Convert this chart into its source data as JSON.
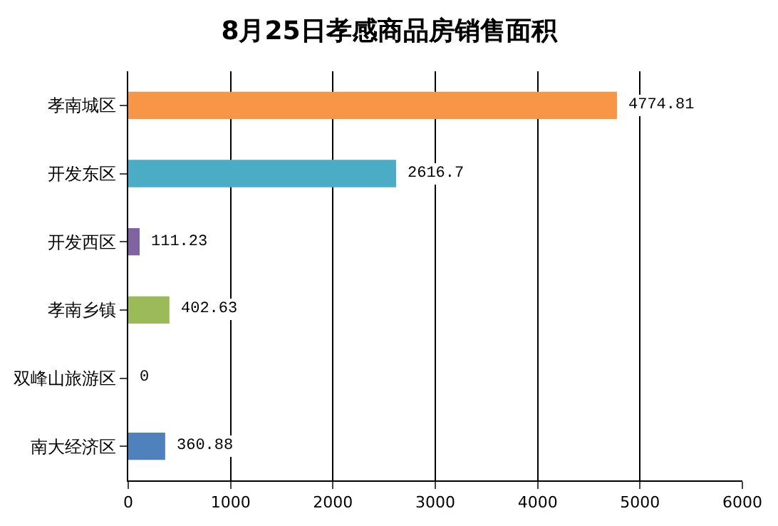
{
  "chart_data": {
    "type": "bar",
    "orientation": "horizontal",
    "title": "8月25日孝感商品房销售面积",
    "categories": [
      "孝南城区",
      "开发东区",
      "开发西区",
      "孝南乡镇",
      "双峰山旅游区",
      "南大经济区"
    ],
    "values": [
      4774.81,
      2616.7,
      111.23,
      402.63,
      0,
      360.88
    ],
    "colors": [
      "#f79646",
      "#4bacc6",
      "#8064a2",
      "#9bbb59",
      null,
      "#4f81bd"
    ],
    "xlim": [
      0,
      6000
    ],
    "xticks": [
      0,
      1000,
      2000,
      3000,
      4000,
      5000,
      6000
    ],
    "grid": "x",
    "data_labels": true,
    "legend": false
  }
}
